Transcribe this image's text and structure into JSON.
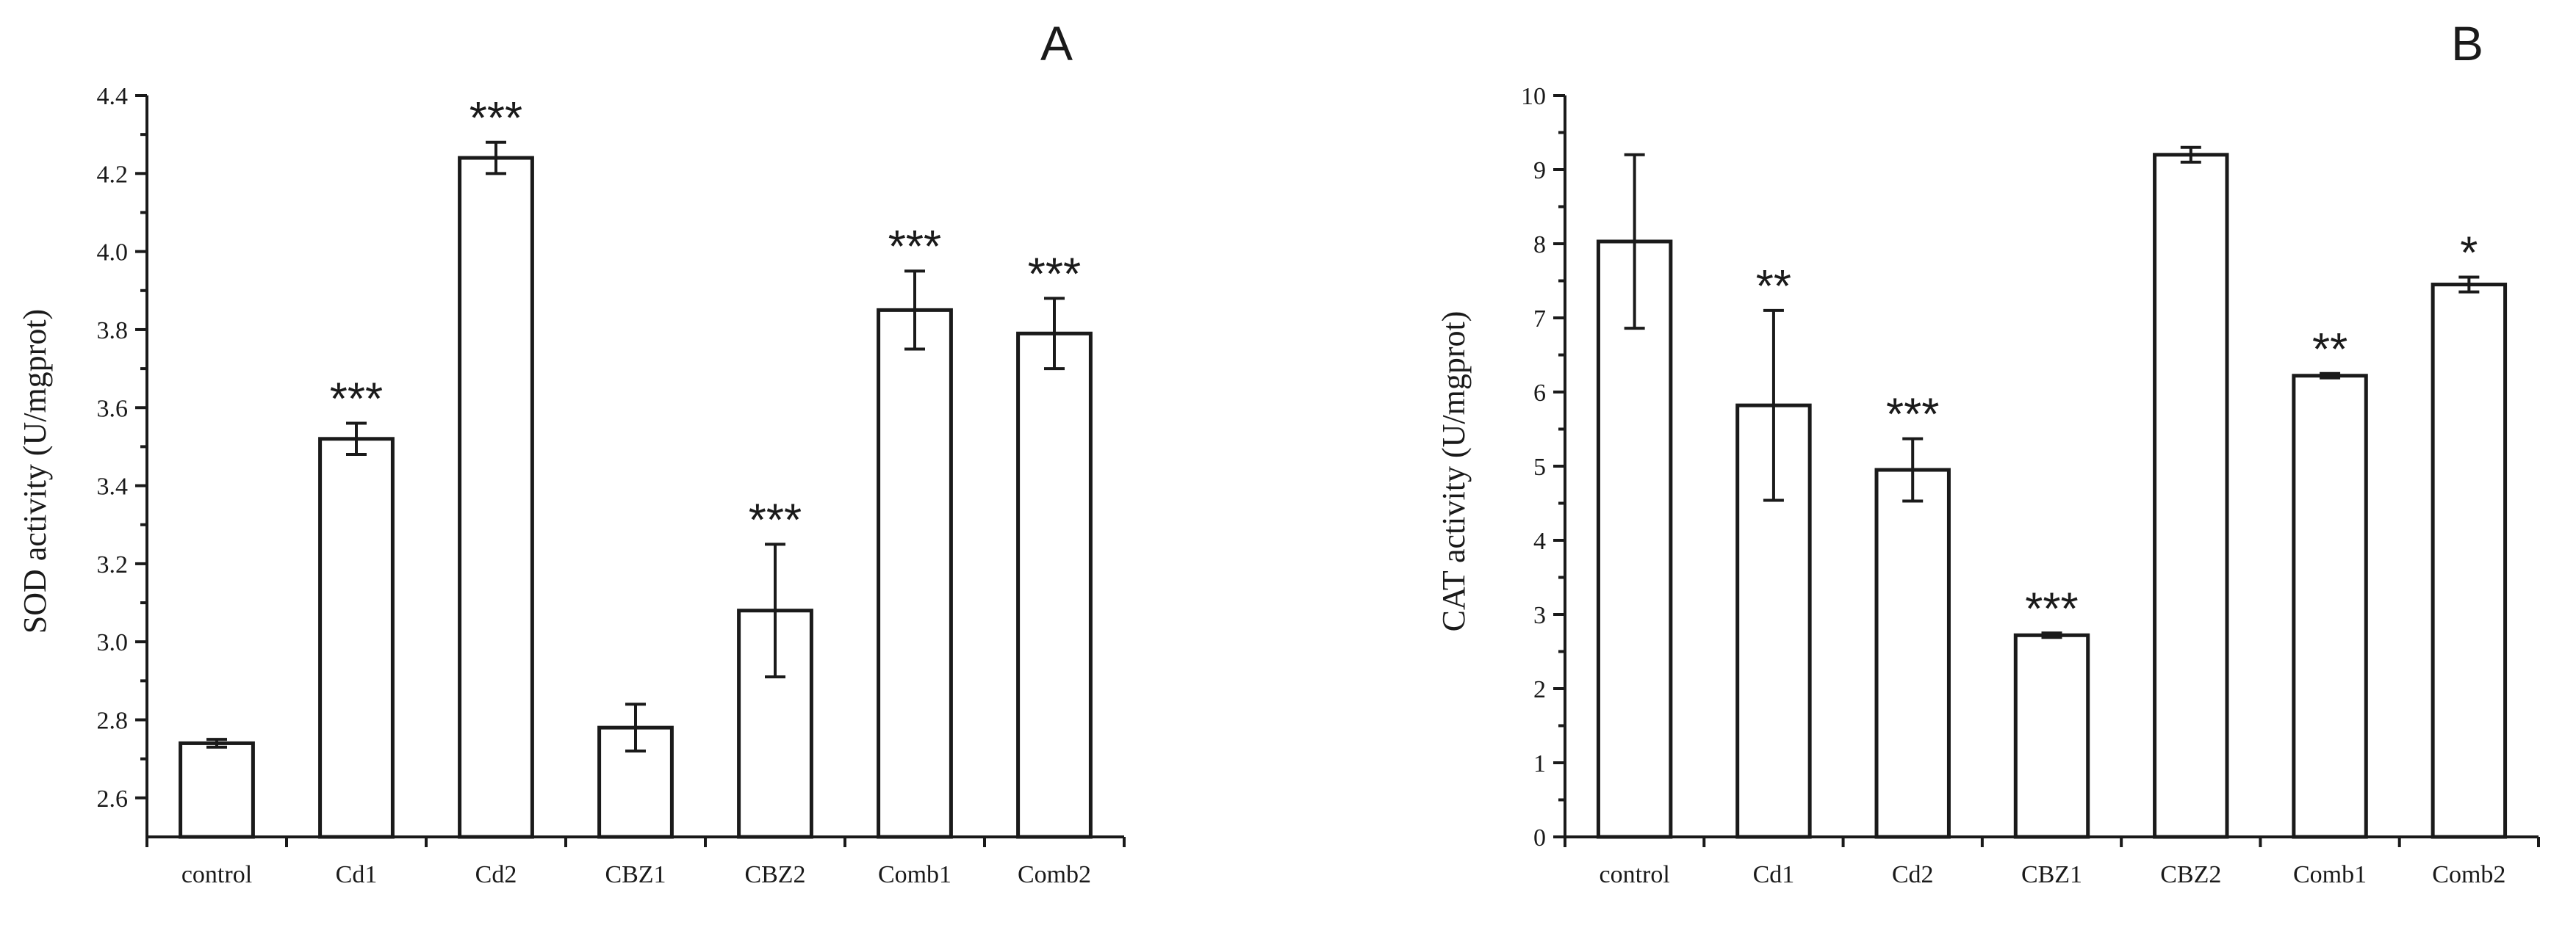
{
  "chart_data": [
    {
      "type": "bar",
      "panel": "A",
      "ylabel": "SOD activity (U/mgprot)",
      "xlabel": "",
      "categories": [
        "control",
        "Cd1",
        "Cd2",
        "CBZ1",
        "CBZ2",
        "Comb1",
        "Comb2"
      ],
      "values": [
        2.74,
        3.52,
        4.24,
        2.78,
        3.08,
        3.85,
        3.79
      ],
      "errors": [
        0.01,
        0.04,
        0.04,
        0.06,
        0.17,
        0.1,
        0.09
      ],
      "significance": [
        "",
        "***",
        "***",
        "",
        "***",
        "***",
        "***"
      ],
      "ylim": [
        2.5,
        4.4
      ],
      "yticks": [
        2.6,
        2.8,
        3.0,
        3.2,
        3.4,
        3.6,
        3.8,
        4.0,
        4.2,
        4.4
      ],
      "ytick_labels": [
        "2.6",
        "2.8",
        "3.0",
        "3.2",
        "3.4",
        "3.6",
        "3.8",
        "4.0",
        "4.2",
        "4.4"
      ]
    },
    {
      "type": "bar",
      "panel": "B",
      "ylabel": "CAT activity (U/mgprot)",
      "xlabel": "",
      "categories": [
        "control",
        "Cd1",
        "Cd2",
        "CBZ1",
        "CBZ2",
        "Comb1",
        "Comb2"
      ],
      "values": [
        8.03,
        5.82,
        4.95,
        2.72,
        9.2,
        6.22,
        7.45
      ],
      "errors": [
        1.17,
        1.28,
        0.42,
        0.03,
        0.1,
        0.03,
        0.1
      ],
      "significance": [
        "",
        "**",
        "***",
        "***",
        "",
        "**",
        "*"
      ],
      "ylim": [
        0,
        10
      ],
      "yticks": [
        0,
        1,
        2,
        3,
        4,
        5,
        6,
        7,
        8,
        9,
        10
      ],
      "ytick_labels": [
        "0",
        "1",
        "2",
        "3",
        "4",
        "5",
        "6",
        "7",
        "8",
        "9",
        "10"
      ]
    }
  ]
}
